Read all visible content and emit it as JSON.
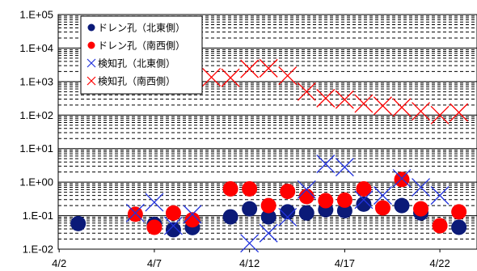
{
  "chart_data": {
    "type": "scatter",
    "y_scale": "log",
    "ylim": [
      0.01,
      100000
    ],
    "y_ticks": [
      "1.E-02",
      "1.E-01",
      "1.E+00",
      "1.E+01",
      "1.E+02",
      "1.E+03",
      "1.E+04",
      "1.E+05"
    ],
    "xlim": [
      "4/2",
      "4/24"
    ],
    "x_ticks": [
      "4/2",
      "4/7",
      "4/12",
      "4/17",
      "4/22"
    ],
    "grid": {
      "horizontal_major": true,
      "horizontal_minor": true,
      "vertical": false
    },
    "legend_position": "top-left",
    "series": [
      {
        "name": "ドレン孔（北東側）",
        "marker": "filled-circle",
        "color": "#0b1a78",
        "points": [
          [
            "4/3",
            0.058
          ],
          [
            "4/7",
            0.055
          ],
          [
            "4/8",
            0.038
          ],
          [
            "4/9",
            0.044
          ],
          [
            "4/11",
            0.092
          ],
          [
            "4/12",
            0.16
          ],
          [
            "4/13",
            0.092
          ],
          [
            "4/14",
            0.13
          ],
          [
            "4/15",
            0.12
          ],
          [
            "4/16",
            0.15
          ],
          [
            "4/17",
            0.14
          ],
          [
            "4/18",
            0.22
          ],
          [
            "4/20",
            0.2
          ],
          [
            "4/21",
            0.12
          ],
          [
            "4/23",
            0.045
          ]
        ]
      },
      {
        "name": "ドレン孔（南西側）",
        "marker": "filled-circle",
        "color": "#ff0000",
        "points": [
          [
            "4/6",
            0.11
          ],
          [
            "4/7",
            0.045
          ],
          [
            "4/8",
            0.12
          ],
          [
            "4/9",
            0.075
          ],
          [
            "4/11",
            0.63
          ],
          [
            "4/12",
            0.63
          ],
          [
            "4/13",
            0.2
          ],
          [
            "4/14",
            0.53
          ],
          [
            "4/15",
            0.37
          ],
          [
            "4/16",
            0.28
          ],
          [
            "4/17",
            0.29
          ],
          [
            "4/18",
            0.63
          ],
          [
            "4/19",
            0.17
          ],
          [
            "4/20",
            1.2
          ],
          [
            "4/21",
            0.16
          ],
          [
            "4/22",
            0.05
          ],
          [
            "4/23",
            0.13
          ]
        ]
      },
      {
        "name": "検知孔（北東側）",
        "marker": "x",
        "color": "#2233dd",
        "points": [
          [
            "4/6",
            0.12
          ],
          [
            "4/7",
            0.25
          ],
          [
            "4/8",
            0.05
          ],
          [
            "4/9",
            0.11
          ],
          [
            "4/12",
            0.015
          ],
          [
            "4/13",
            0.03
          ],
          [
            "4/14",
            0.09
          ],
          [
            "4/15",
            0.6
          ],
          [
            "4/16",
            3.5
          ],
          [
            "4/17",
            2.8
          ],
          [
            "4/18",
            0.3
          ],
          [
            "4/19",
            0.4
          ],
          [
            "4/20",
            1.3
          ],
          [
            "4/21",
            0.7
          ],
          [
            "4/22",
            0.4
          ]
        ]
      },
      {
        "name": "検知孔（南西側）",
        "marker": "x",
        "color": "#ff0000",
        "points": [
          [
            "4/9",
            1300
          ],
          [
            "4/10",
            1350
          ],
          [
            "4/11",
            1300
          ],
          [
            "4/12",
            2400
          ],
          [
            "4/13",
            2500
          ],
          [
            "4/14",
            1500
          ],
          [
            "4/15",
            500
          ],
          [
            "4/16",
            320
          ],
          [
            "4/17",
            290
          ],
          [
            "4/18",
            220
          ],
          [
            "4/19",
            190
          ],
          [
            "4/20",
            170
          ],
          [
            "4/21",
            130
          ],
          [
            "4/22",
            100
          ],
          [
            "4/23",
            120
          ]
        ]
      }
    ]
  }
}
